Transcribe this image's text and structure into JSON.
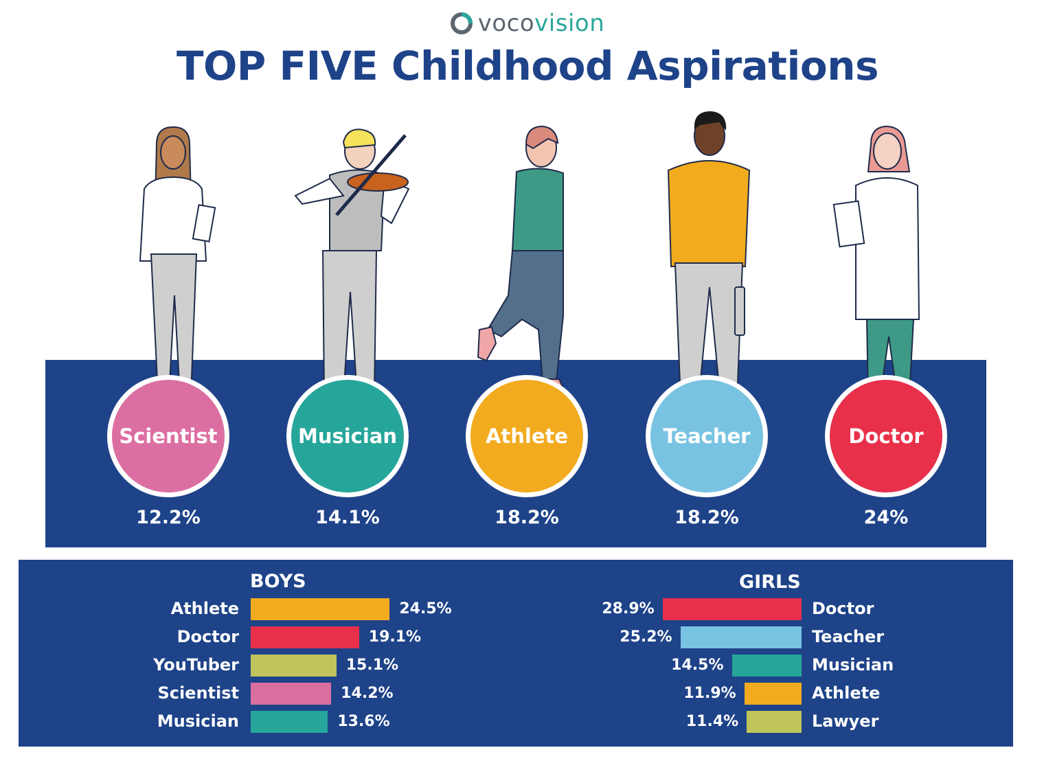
{
  "brand": {
    "name_part1": "voco",
    "name_part2": "vision"
  },
  "title": "TOP FIVE Childhood Aspirations",
  "colors": {
    "navy": "#1e4389",
    "scientist": "#dc6fa2",
    "musician": "#26a69a",
    "athlete": "#f2ab1f",
    "teacher": "#79c3e2",
    "doctor": "#e8304b",
    "youtuber": "#bfc55a",
    "lawyer": "#bfc55a"
  },
  "chart_data": [
    {
      "type": "bar",
      "categories": [
        "Scientist",
        "Musician",
        "Athlete",
        "Teacher",
        "Doctor"
      ],
      "values": [
        12.2,
        14.1,
        18.2,
        18.2,
        24
      ],
      "labels": [
        "12.2%",
        "14.1%",
        "18.2%",
        "18.2%",
        "24%"
      ],
      "title": "TOP FIVE Childhood Aspirations"
    },
    {
      "type": "bar",
      "title": "BOYS",
      "categories": [
        "Athlete",
        "Doctor",
        "YouTuber",
        "Scientist",
        "Musician"
      ],
      "values": [
        24.5,
        19.1,
        15.1,
        14.2,
        13.6
      ],
      "labels": [
        "24.5%",
        "19.1%",
        "15.1%",
        "14.2%",
        "13.6%"
      ]
    },
    {
      "type": "bar",
      "title": "GIRLS",
      "categories": [
        "Doctor",
        "Teacher",
        "Musician",
        "Athlete",
        "Lawyer"
      ],
      "values": [
        28.9,
        25.2,
        14.5,
        11.9,
        11.4
      ],
      "labels": [
        "28.9%",
        "25.2%",
        "14.5%",
        "11.9%",
        "11.4%"
      ]
    }
  ]
}
